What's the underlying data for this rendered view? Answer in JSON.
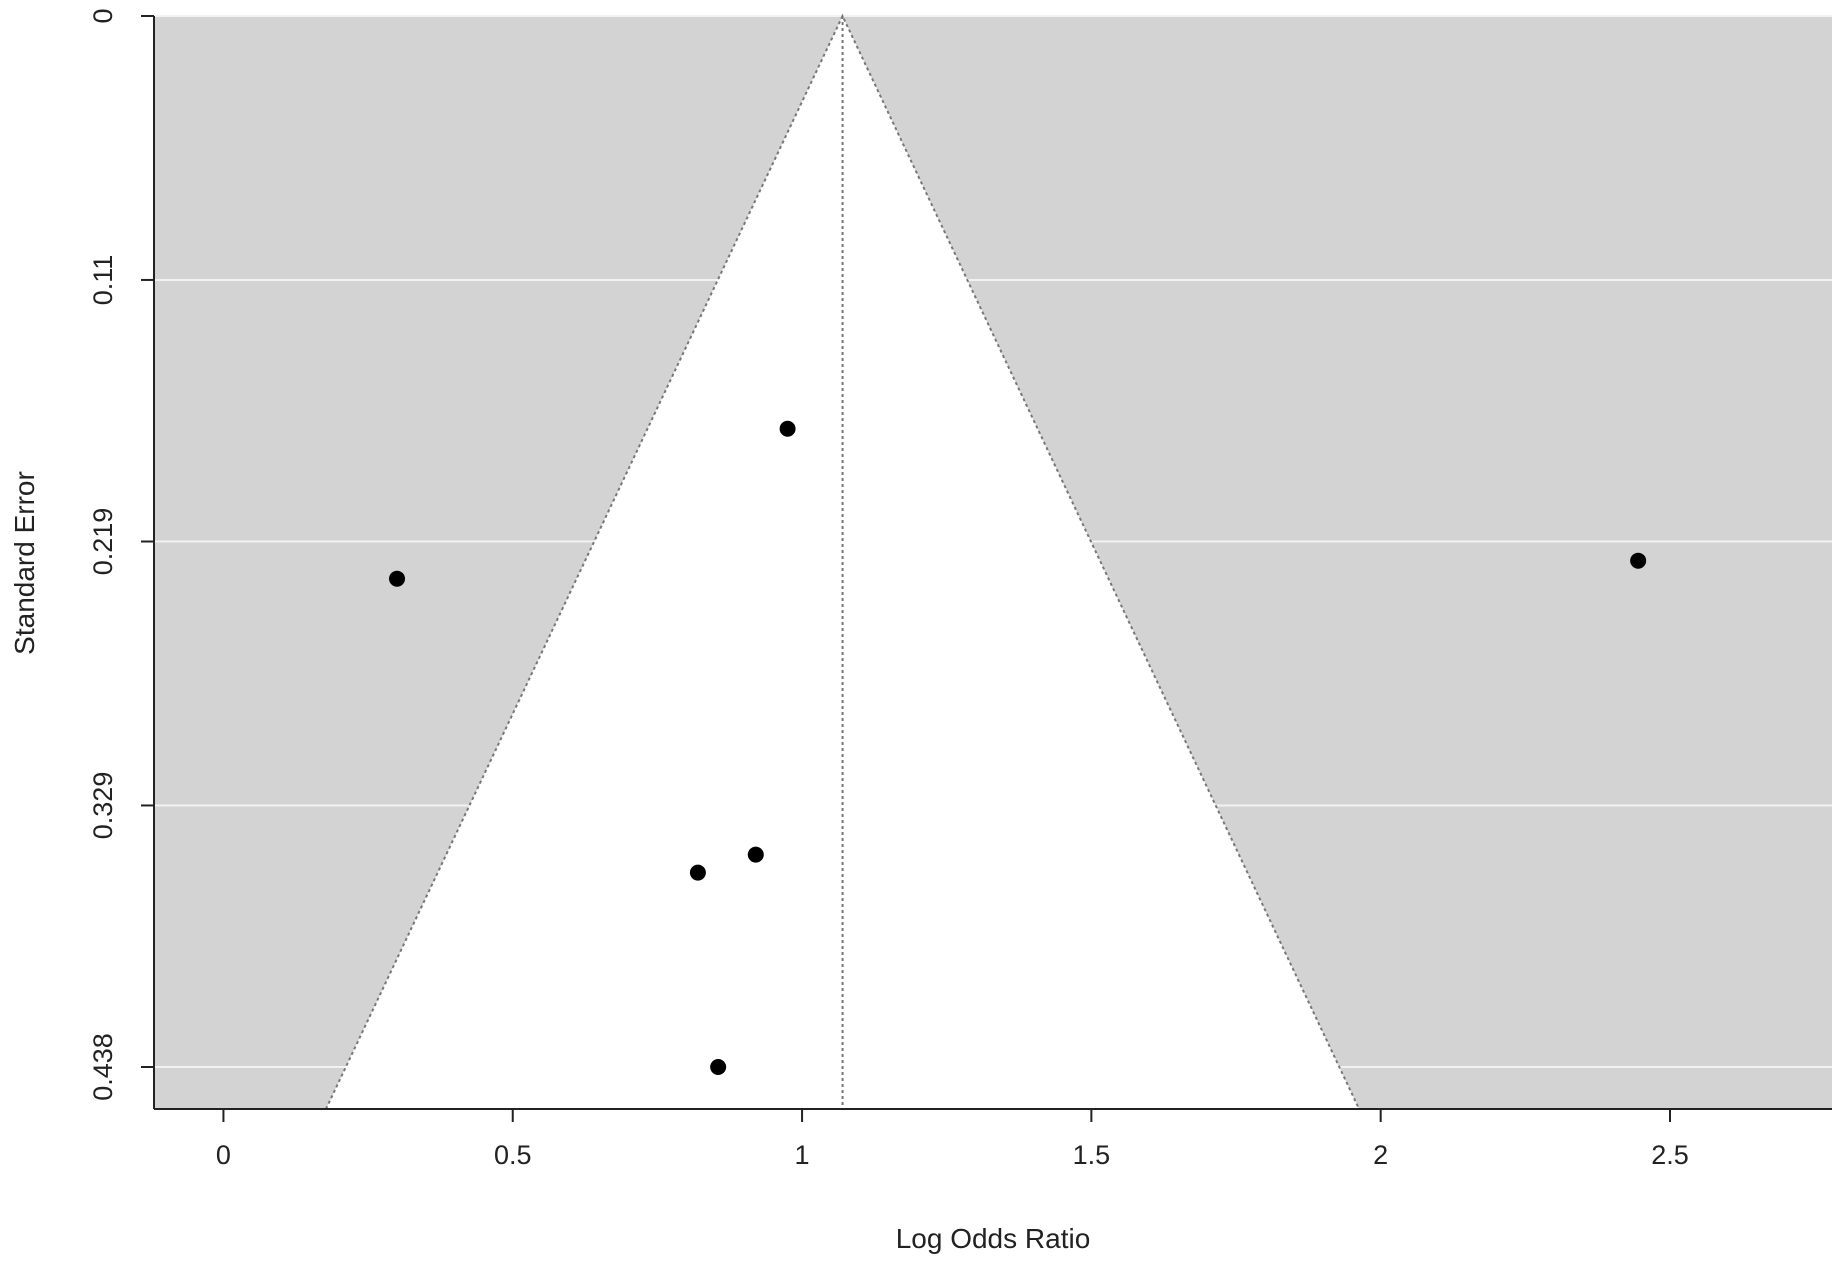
{
  "chart_data": {
    "type": "scatter",
    "subtype": "funnel-plot",
    "title": "",
    "xlabel": "Log Odds Ratio",
    "ylabel": "Standard Error",
    "xlim": [
      -0.12,
      2.78
    ],
    "ylim": [
      0.4555,
      0
    ],
    "y_reversed": true,
    "x_ticks": [
      0,
      0.5,
      1,
      1.5,
      2,
      2.5
    ],
    "x_tick_labels": [
      "0",
      "0.5",
      "1",
      "1.5",
      "2",
      "2.5"
    ],
    "y_ticks": [
      0,
      0.11,
      0.219,
      0.329,
      0.438
    ],
    "y_tick_labels": [
      "0",
      "0.11",
      "0.219",
      "0.329",
      "0.438"
    ],
    "grid": true,
    "background_color": "#d3d3d3",
    "funnel_fill_color": "#ffffff",
    "point_color": "#000000",
    "pooled_estimate": 1.07,
    "funnel_z": 1.96,
    "points": [
      {
        "x": 0.3,
        "y": 0.2345
      },
      {
        "x": 0.975,
        "y": 0.172
      },
      {
        "x": 2.445,
        "y": 0.227
      },
      {
        "x": 0.92,
        "y": 0.3495
      },
      {
        "x": 0.82,
        "y": 0.357
      },
      {
        "x": 0.855,
        "y": 0.438
      }
    ]
  }
}
